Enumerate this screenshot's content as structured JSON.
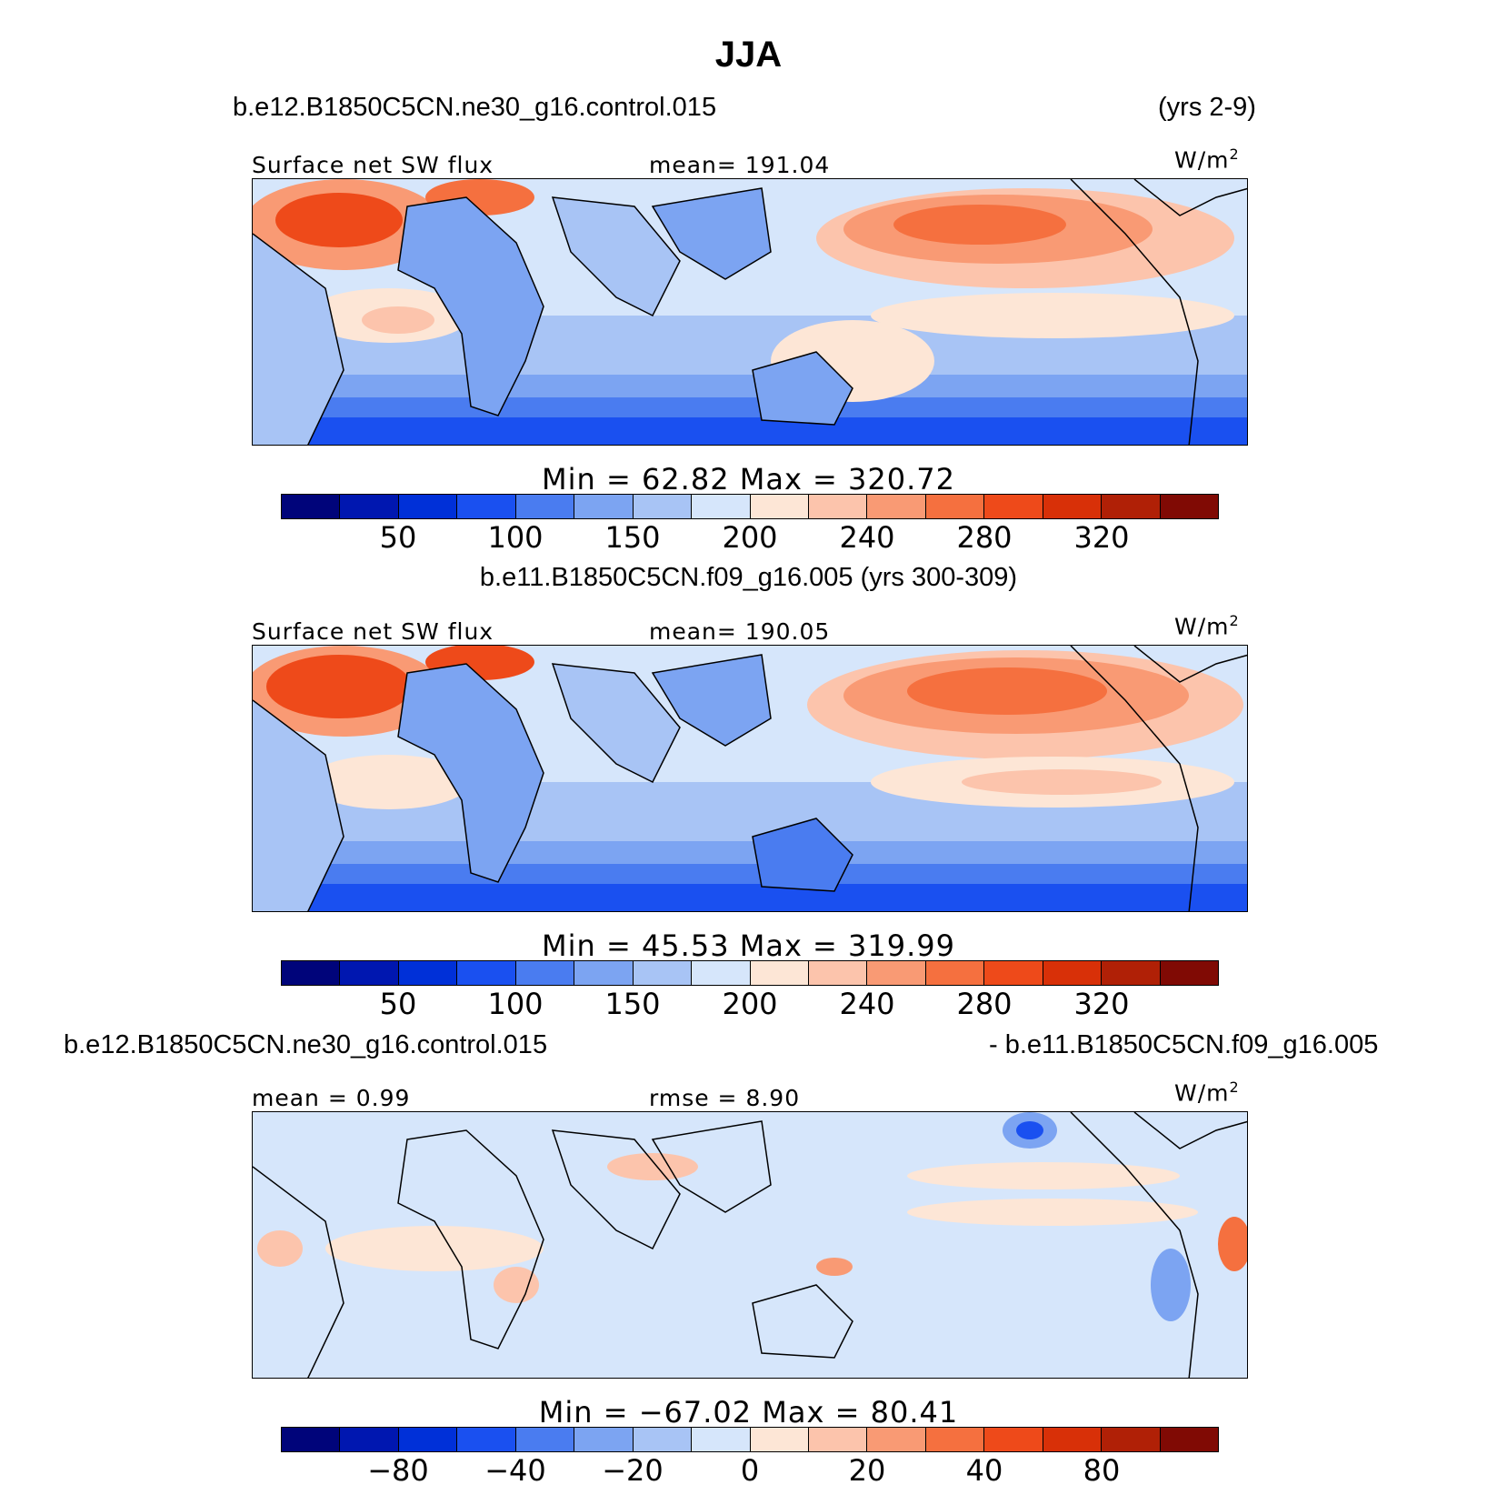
{
  "title": "JJA",
  "panels": [
    {
      "case_left": "b.e12.B1850C5CN.ne30_g16.control.015",
      "case_right": "(yrs 2-9)",
      "var_label": "Surface net SW flux",
      "stat_label": "mean= 191.04",
      "units_base": "W/m",
      "units_exp": "2",
      "minmax": "Min =  62.82  Max = 320.72",
      "ticks": [
        "50",
        "100",
        "150",
        "200",
        "240",
        "280",
        "320"
      ]
    },
    {
      "case_center": "b.e11.B1850C5CN.f09_g16.005 (yrs 300-309)",
      "var_label": "Surface net SW flux",
      "stat_label": "mean= 190.05",
      "units_base": "W/m",
      "units_exp": "2",
      "minmax": "Min =  45.53  Max = 319.99",
      "ticks": [
        "50",
        "100",
        "150",
        "200",
        "240",
        "280",
        "320"
      ]
    },
    {
      "case_left": "b.e12.B1850C5CN.ne30_g16.control.015",
      "case_right": "- b.e11.B1850C5CN.f09_g16.005",
      "var_label": "mean =    0.99",
      "stat_label": "rmse =    8.90",
      "units_base": "W/m",
      "units_exp": "2",
      "minmax": "Min = −67.02  Max =   80.41",
      "ticks": [
        "−80",
        "−40",
        "−20",
        "0",
        "20",
        "40",
        "80"
      ]
    }
  ],
  "colors": {
    "palette": [
      "#00047a",
      "#0017b0",
      "#0030d8",
      "#1a50f0",
      "#4a7cf0",
      "#7ca4f2",
      "#a8c4f5",
      "#d6e6fb",
      "#fde6d6",
      "#fcc4ac",
      "#f99a74",
      "#f5703f",
      "#ee4a1a",
      "#d83008",
      "#b02006",
      "#800a04"
    ],
    "land_outline": "#000000"
  }
}
